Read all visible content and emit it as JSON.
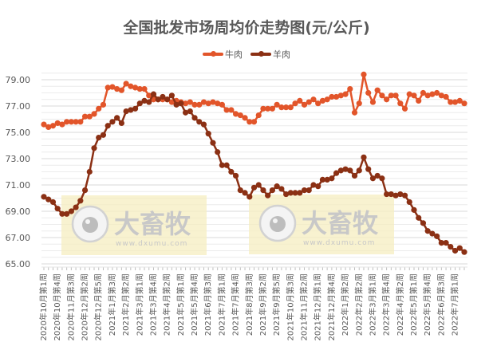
{
  "chart_data": {
    "type": "line",
    "title": "全国批发市场周均价走势图(元/公斤)",
    "xlabel": "",
    "ylabel": "",
    "ylim": [
      65,
      79
    ],
    "yticks": [
      "65.00",
      "67.00",
      "69.00",
      "71.00",
      "73.00",
      "75.00",
      "77.00",
      "79.00"
    ],
    "grid": true,
    "legend_position": "top",
    "x_tick_labels": [
      "2020年10月第1周",
      "2020年10月第4周",
      "2020年11月第3周",
      "2020年12月第2周",
      "2020年12月第5周",
      "2021年1月第3周",
      "2021年2月第2周",
      "2021年3月第1周",
      "2021年3月第4周",
      "2021年4月第2周",
      "2021年5月第1周",
      "2021年5月第4周",
      "2021年6月第3周",
      "2021年7月第1周",
      "2021年7月第4周",
      "2021年8月第3周",
      "2021年9月第2周",
      "2021年9月第5周",
      "2021年10月第3周",
      "2021年11月第2周",
      "2021年12月第1周",
      "2021年12月第4周",
      "2022年1月第2周",
      "2022年2月第2周",
      "2022年3月第1周",
      "2022年3月第4周",
      "2022年4月第2周",
      "2022年5月第1周",
      "2022年5月第4周",
      "2022年6月第3周",
      "2022年7月第1周"
    ],
    "x_tick_every": 3,
    "n_points": 93,
    "series": [
      {
        "name": "牛肉",
        "color": "#E2552A",
        "values": [
          75.6,
          75.4,
          75.5,
          75.7,
          75.6,
          75.8,
          75.8,
          75.8,
          75.8,
          76.2,
          76.2,
          76.4,
          76.8,
          77.1,
          78.4,
          78.45,
          78.3,
          78.2,
          78.7,
          78.5,
          78.4,
          78.3,
          78.3,
          77.8,
          77.5,
          77.5,
          77.5,
          77.5,
          77.3,
          77.4,
          77.3,
          77.2,
          77.3,
          77.1,
          77.1,
          77.3,
          77.2,
          77.3,
          77.2,
          77.1,
          76.7,
          76.7,
          76.4,
          76.3,
          76.1,
          75.8,
          75.8,
          76.3,
          76.8,
          76.8,
          76.8,
          77.1,
          76.9,
          76.9,
          76.9,
          77.2,
          77.4,
          77.1,
          77.3,
          77.5,
          77.2,
          77.4,
          77.5,
          77.7,
          77.7,
          77.8,
          77.9,
          78.3,
          76.5,
          77.2,
          79.4,
          78.0,
          77.3,
          78.2,
          77.8,
          77.5,
          77.8,
          77.8,
          77.2,
          76.8,
          77.9,
          77.8,
          77.4,
          78.0,
          77.8,
          77.9,
          78.0,
          77.8,
          77.7,
          77.3,
          77.3,
          77.4,
          77.2
        ]
      },
      {
        "name": "羊肉",
        "color": "#8B3014",
        "values": [
          70.1,
          69.9,
          69.7,
          69.2,
          68.8,
          68.8,
          69.0,
          69.3,
          69.8,
          70.6,
          72.0,
          73.8,
          74.6,
          74.8,
          75.5,
          75.8,
          76.1,
          75.7,
          76.6,
          76.7,
          76.8,
          77.2,
          77.4,
          77.3,
          77.9,
          77.5,
          77.7,
          77.5,
          77.8,
          77.1,
          77.2,
          76.5,
          76.6,
          76.1,
          75.8,
          75.6,
          74.9,
          74.2,
          73.5,
          72.5,
          72.5,
          72.0,
          71.7,
          70.6,
          70.4,
          70.1,
          70.8,
          71.0,
          70.6,
          70.2,
          70.6,
          70.9,
          70.7,
          70.3,
          70.4,
          70.4,
          70.4,
          70.6,
          70.6,
          71.0,
          70.9,
          71.4,
          71.4,
          71.5,
          71.9,
          72.1,
          72.2,
          72.1,
          71.7,
          72.1,
          73.1,
          72.2,
          71.5,
          71.7,
          71.5,
          70.3,
          70.3,
          70.2,
          70.3,
          70.2,
          69.7,
          69.1,
          68.5,
          68.1,
          67.5,
          67.3,
          67.1,
          66.6,
          66.6,
          66.3,
          66.0,
          66.2,
          65.9
        ]
      }
    ]
  },
  "legend": {
    "items": [
      {
        "label": "牛肉",
        "color": "#E2552A"
      },
      {
        "label": "羊肉",
        "color": "#8B3014"
      }
    ]
  },
  "watermark": {
    "brand": "大畜牧",
    "url": "www.dxumu.com"
  }
}
